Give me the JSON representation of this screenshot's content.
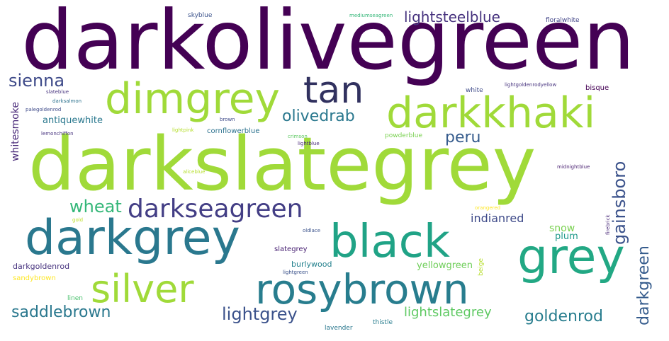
{
  "palette": {
    "purple": "#440154",
    "indigo": "#46327e",
    "blue": "#365c8d",
    "teal": "#277f8e",
    "green": "#1fa187",
    "lightgreen": "#4ac16d",
    "lime": "#a0da39",
    "yellow": "#fde725"
  },
  "words": [
    "darkolivegreen",
    "darkslategrey",
    "dimgrey",
    "tan",
    "darkkhaki",
    "darkgrey",
    "black",
    "grey",
    "silver",
    "rosybrown",
    "darkseagreen",
    "sienna",
    "olivedrab",
    "peru",
    "lightsteelblue",
    "gainsboro",
    "wheat",
    "whitesmoke",
    "antiquewhite",
    "saddlebrown",
    "lightgrey",
    "darkgreen",
    "indianred",
    "goldenrod",
    "lightslategrey",
    "snow",
    "plum",
    "yellowgreen",
    "darkgoldenrod",
    "burlywood",
    "slategrey",
    "sandybrown",
    "cornflowerblue",
    "skyblue",
    "mediumseagreen",
    "floralwhite",
    "slateblue",
    "darksalmon",
    "palegoldenrod",
    "lemonchiffon",
    "lightpink",
    "brown",
    "crimson",
    "lightblue",
    "powderblue",
    "white",
    "bisque",
    "lightgoldenrodyellow",
    "aliceblue",
    "midnightblue",
    "orangered",
    "gold",
    "oldlace",
    "lightgreen",
    "beige",
    "firebrick",
    "linen",
    "lavender",
    "thistle"
  ]
}
